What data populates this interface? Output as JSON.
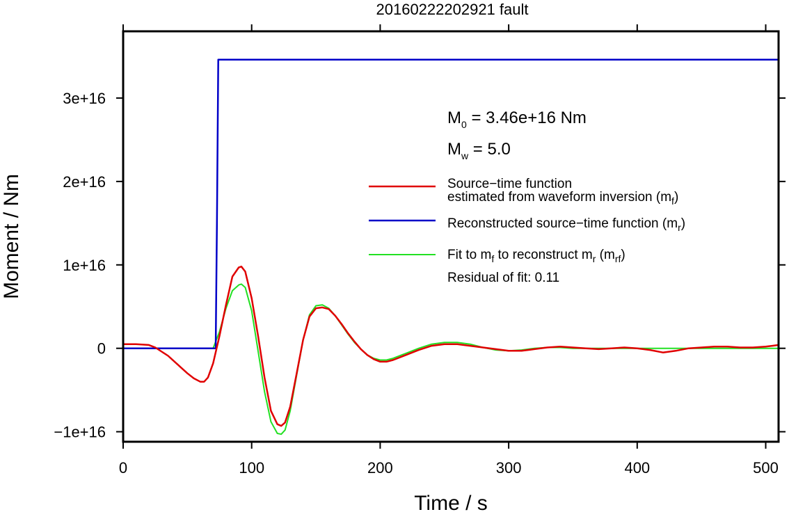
{
  "chart_data": {
    "type": "line",
    "title": "20160222202921 fault",
    "xlabel": "Time / s",
    "ylabel": "Moment / Nm",
    "xlim": [
      0,
      510
    ],
    "ylim": [
      -1.12e+16,
      3.8e+16
    ],
    "x_ticks": [
      0,
      100,
      200,
      300,
      400,
      500
    ],
    "x_tick_labels": [
      "0",
      "100",
      "200",
      "300",
      "400",
      "500"
    ],
    "y_ticks": [
      -1e+16,
      0,
      1e+16,
      2e+16,
      3e+16
    ],
    "y_tick_labels": [
      "−1e+16",
      "0",
      "1e+16",
      "2e+16",
      "3e+16"
    ],
    "grid": false,
    "legend_position": "right",
    "annotations": {
      "m0_main": "M",
      "m0_sub": "0",
      "m0_rest": " = 3.46e+16 Nm",
      "mw_main": "M",
      "mw_sub": "w",
      "mw_rest": " = 5.0",
      "residual": "Residual of fit: 0.11"
    },
    "legend": [
      {
        "color": "#e00000",
        "line1": "Source−time function",
        "line2_main": "estimated from waveform inversion (m",
        "line2_sub": "f",
        "line2_end": ")"
      },
      {
        "color": "#0000c8",
        "line1_main": "Reconstructed source−time function (m",
        "line1_sub": "r",
        "line1_end": ")"
      },
      {
        "color": "#22e022",
        "a": "Fit to m",
        "a_sub": "f",
        "b": " to reconstruct m",
        "b_sub": "r",
        "c": " (m",
        "c_sub": "rf",
        "d": ")"
      }
    ],
    "series": [
      {
        "color": "#0000c8",
        "x": [
          0,
          72,
          73,
          74,
          510
        ],
        "y": [
          0,
          0,
          1.5e+16,
          3.46e+16,
          3.46e+16
        ]
      },
      {
        "color": "#e00000",
        "x": [
          0,
          10,
          20,
          25,
          30,
          35,
          40,
          45,
          50,
          55,
          60,
          63,
          66,
          70,
          75,
          80,
          85,
          90,
          92,
          95,
          100,
          105,
          110,
          115,
          120,
          123,
          126,
          130,
          135,
          140,
          145,
          150,
          155,
          160,
          165,
          170,
          175,
          180,
          185,
          190,
          195,
          200,
          205,
          210,
          220,
          230,
          240,
          250,
          260,
          270,
          280,
          290,
          300,
          310,
          320,
          330,
          340,
          350,
          360,
          370,
          380,
          390,
          400,
          410,
          420,
          430,
          440,
          450,
          460,
          470,
          480,
          490,
          500,
          505,
          510
        ],
        "y": [
          500000000000000.0,
          500000000000000.0,
          400000000000000.0,
          100000000000000.0,
          -400000000000000.0,
          -900000000000000.0,
          -1600000000000000.0,
          -2300000000000000.0,
          -3000000000000000.0,
          -3600000000000000.0,
          -4000000000000000.0,
          -4000000000000000.0,
          -3500000000000000.0,
          -1800000000000000.0,
          1500000000000000.0,
          5200000000000000.0,
          8600000000000000.0,
          9700000000000000.0,
          9800000000000000.0,
          9200000000000000.0,
          6000000000000000.0,
          1500000000000000.0,
          -3500000000000000.0,
          -7500000000000000.0,
          -9100000000000000.0,
          -9300000000000000.0,
          -8900000000000000.0,
          -7000000000000000.0,
          -3000000000000000.0,
          1000000000000000.0,
          3800000000000000.0,
          4800000000000000.0,
          4900000000000000.0,
          4700000000000000.0,
          3900000000000000.0,
          2900000000000000.0,
          1800000000000000.0,
          800000000000000.0,
          -100000000000000.0,
          -800000000000000.0,
          -1300000000000000.0,
          -1600000000000000.0,
          -1600000000000000.0,
          -1400000000000000.0,
          -800000000000000.0,
          -200000000000000.0,
          300000000000000.0,
          500000000000000.0,
          500000000000000.0,
          300000000000000.0,
          100000000000000.0,
          -100000000000000.0,
          -300000000000000.0,
          -300000000000000.0,
          -100000000000000.0,
          100000000000000.0,
          200000000000000.0,
          100000000000000.0,
          0,
          -100000000000000.0,
          0,
          100000000000000.0,
          0,
          -200000000000000.0,
          -500000000000000.0,
          -300000000000000.0,
          0,
          100000000000000.0,
          200000000000000.0,
          200000000000000.0,
          100000000000000.0,
          100000000000000.0,
          200000000000000.0,
          300000000000000.0,
          400000000000000.0
        ]
      },
      {
        "color": "#22e022",
        "x": [
          0,
          60,
          70,
          75,
          80,
          85,
          90,
          92,
          95,
          100,
          105,
          110,
          115,
          120,
          123,
          126,
          130,
          135,
          140,
          145,
          150,
          155,
          160,
          165,
          170,
          175,
          180,
          185,
          190,
          195,
          200,
          205,
          210,
          220,
          230,
          240,
          250,
          260,
          270,
          280,
          290,
          300,
          310,
          320,
          330,
          340,
          350,
          360,
          380,
          400,
          420,
          440,
          460,
          480,
          500,
          510
        ],
        "y": [
          0,
          0,
          0,
          2000000000000000.0,
          4800000000000000.0,
          6900000000000000.0,
          7600000000000000.0,
          7700000000000000.0,
          7300000000000000.0,
          4500000000000000.0,
          -300000000000000.0,
          -5200000000000000.0,
          -8800000000000000.0,
          -1.02e+16,
          -1.03e+16,
          -9800000000000000.0,
          -7500000000000000.0,
          -3200000000000000.0,
          1000000000000000.0,
          4000000000000000.0,
          5100000000000000.0,
          5200000000000000.0,
          4800000000000000.0,
          3900000000000000.0,
          2800000000000000.0,
          1700000000000000.0,
          700000000000000.0,
          -100000000000000.0,
          -800000000000000.0,
          -1200000000000000.0,
          -1400000000000000.0,
          -1400000000000000.0,
          -1200000000000000.0,
          -600000000000000.0,
          0,
          500000000000000.0,
          700000000000000.0,
          700000000000000.0,
          500000000000000.0,
          100000000000000.0,
          -200000000000000.0,
          -300000000000000.0,
          -200000000000000.0,
          0,
          100000000000000.0,
          100000000000000.0,
          0,
          0,
          0,
          0,
          0,
          0,
          0,
          0,
          0,
          0
        ]
      }
    ]
  }
}
